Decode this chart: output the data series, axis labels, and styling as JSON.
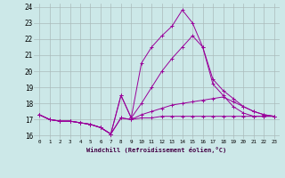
{
  "xlabel": "Windchill (Refroidissement éolien,°C)",
  "background_color": "#cce8e8",
  "grid_color": "#aabbbb",
  "line_color": "#990099",
  "xlim": [
    -0.5,
    23.5
  ],
  "ylim": [
    15.8,
    24.2
  ],
  "yticks": [
    16,
    17,
    18,
    19,
    20,
    21,
    22,
    23,
    24
  ],
  "xticks": [
    0,
    1,
    2,
    3,
    4,
    5,
    6,
    7,
    8,
    9,
    10,
    11,
    12,
    13,
    14,
    15,
    16,
    17,
    18,
    19,
    20,
    21,
    22,
    23
  ],
  "lines": [
    {
      "x": [
        0,
        1,
        2,
        3,
        4,
        5,
        6,
        7,
        8,
        9,
        10,
        11,
        12,
        13,
        14,
        15,
        16,
        17,
        18,
        19,
        20,
        21,
        22,
        23
      ],
      "y": [
        17.3,
        17.0,
        16.9,
        16.9,
        16.8,
        16.7,
        16.5,
        16.1,
        17.1,
        17.0,
        17.1,
        17.1,
        17.2,
        17.2,
        17.2,
        17.2,
        17.2,
        17.2,
        17.2,
        17.2,
        17.2,
        17.2,
        17.2,
        17.2
      ]
    },
    {
      "x": [
        0,
        1,
        2,
        3,
        4,
        5,
        6,
        7,
        8,
        9,
        10,
        11,
        12,
        13,
        14,
        15,
        16,
        17,
        18,
        19,
        20,
        21,
        22,
        23
      ],
      "y": [
        17.3,
        17.0,
        16.9,
        16.9,
        16.8,
        16.7,
        16.5,
        16.1,
        17.1,
        17.0,
        17.3,
        17.5,
        17.7,
        17.9,
        18.0,
        18.1,
        18.2,
        18.3,
        18.4,
        18.1,
        17.8,
        17.5,
        17.3,
        17.2
      ]
    },
    {
      "x": [
        0,
        1,
        2,
        3,
        4,
        5,
        6,
        7,
        8,
        9,
        10,
        11,
        12,
        13,
        14,
        15,
        16,
        17,
        18,
        19,
        20,
        21,
        22,
        23
      ],
      "y": [
        17.3,
        17.0,
        16.9,
        16.9,
        16.8,
        16.7,
        16.5,
        16.1,
        18.5,
        17.1,
        18.0,
        19.0,
        20.0,
        20.8,
        21.5,
        22.2,
        21.5,
        19.5,
        18.8,
        18.3,
        17.8,
        17.5,
        17.3,
        17.2
      ]
    },
    {
      "x": [
        0,
        1,
        2,
        3,
        4,
        5,
        6,
        7,
        8,
        9,
        10,
        11,
        12,
        13,
        14,
        15,
        16,
        17,
        18,
        19,
        20,
        21,
        22,
        23
      ],
      "y": [
        17.3,
        17.0,
        16.9,
        16.9,
        16.8,
        16.7,
        16.5,
        16.1,
        18.5,
        17.1,
        20.5,
        21.5,
        22.2,
        22.8,
        23.8,
        23.0,
        21.5,
        19.2,
        18.5,
        17.8,
        17.4,
        17.2,
        17.2,
        17.2
      ]
    }
  ]
}
